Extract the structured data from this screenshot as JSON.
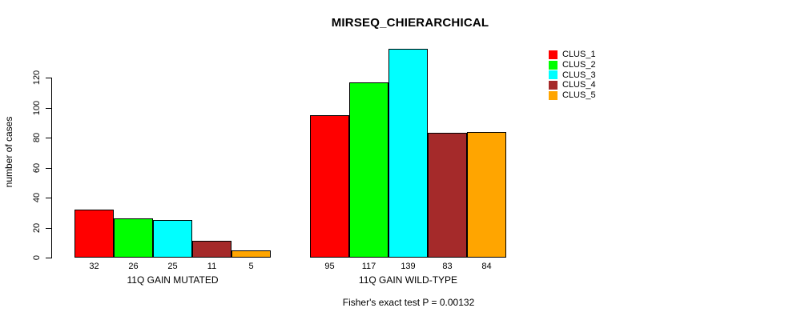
{
  "chart_data": {
    "type": "bar",
    "title": "MIRSEQ_CHIERARCHICAL",
    "ylabel": "number of cases",
    "xlabel": "",
    "yticks": [
      0,
      20,
      40,
      60,
      80,
      100,
      120
    ],
    "ylim": [
      0,
      140
    ],
    "grid": false,
    "legend_position": "right",
    "categories": [
      "11Q GAIN MUTATED",
      "11Q GAIN WILD-TYPE"
    ],
    "series": [
      {
        "name": "CLUS_1",
        "color": "#FF0000",
        "values": [
          32,
          95
        ]
      },
      {
        "name": "CLUS_2",
        "color": "#00FF00",
        "values": [
          26,
          117
        ]
      },
      {
        "name": "CLUS_3",
        "color": "#00FFFF",
        "values": [
          25,
          139
        ]
      },
      {
        "name": "CLUS_4",
        "color": "#A52A2A",
        "values": [
          11,
          83
        ]
      },
      {
        "name": "CLUS_5",
        "color": "#FFA500",
        "values": [
          5,
          84
        ]
      }
    ],
    "bar_value_labels_shown": true,
    "footnote": "Fisher's exact test P = 0.00132"
  }
}
